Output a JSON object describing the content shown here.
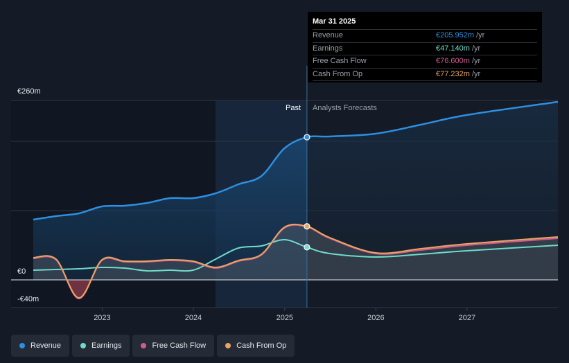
{
  "chart_data": {
    "type": "area",
    "ylim": [
      -40,
      260
    ],
    "y_tick_labels": [
      "€260m",
      "€0",
      "-€40m"
    ],
    "x_tick_labels": [
      "2023",
      "2024",
      "2025",
      "2026",
      "2027"
    ],
    "x_range": [
      "2022-03-31",
      "2027-12-31"
    ],
    "past_label": "Past",
    "forecast_label": "Analysts Forecasts",
    "divider_date": "2025-03-31",
    "series": [
      {
        "name": "Revenue",
        "color": "#2d8fe0",
        "points": [
          [
            "2022-03-31",
            87
          ],
          [
            "2022-06-30",
            92
          ],
          [
            "2022-09-30",
            96
          ],
          [
            "2022-12-31",
            106
          ],
          [
            "2023-03-31",
            107
          ],
          [
            "2023-06-30",
            111
          ],
          [
            "2023-09-30",
            118
          ],
          [
            "2023-12-31",
            118
          ],
          [
            "2024-03-31",
            125
          ],
          [
            "2024-06-30",
            138
          ],
          [
            "2024-09-30",
            150
          ],
          [
            "2024-12-31",
            190
          ],
          [
            "2025-03-31",
            205.952
          ],
          [
            "2025-06-30",
            207
          ],
          [
            "2025-12-31",
            211
          ],
          [
            "2026-06-30",
            224
          ],
          [
            "2026-12-31",
            238
          ],
          [
            "2027-12-31",
            257
          ]
        ]
      },
      {
        "name": "Earnings",
        "color": "#6fdccb",
        "points": [
          [
            "2022-03-31",
            14
          ],
          [
            "2022-06-30",
            15
          ],
          [
            "2022-09-30",
            16
          ],
          [
            "2022-12-31",
            18
          ],
          [
            "2023-03-31",
            17
          ],
          [
            "2023-06-30",
            13
          ],
          [
            "2023-09-30",
            14
          ],
          [
            "2023-12-31",
            14
          ],
          [
            "2024-03-31",
            30
          ],
          [
            "2024-06-30",
            46
          ],
          [
            "2024-09-30",
            49
          ],
          [
            "2024-12-31",
            58
          ],
          [
            "2025-03-31",
            47.14
          ],
          [
            "2025-06-30",
            38
          ],
          [
            "2025-12-31",
            33
          ],
          [
            "2026-06-30",
            37
          ],
          [
            "2026-12-31",
            42
          ],
          [
            "2027-12-31",
            50
          ]
        ]
      },
      {
        "name": "Free Cash Flow",
        "color": "#d05b8e",
        "points": [
          [
            "2022-03-31",
            31
          ],
          [
            "2022-06-30",
            29
          ],
          [
            "2022-09-30",
            -27
          ],
          [
            "2022-12-31",
            28
          ],
          [
            "2023-03-31",
            26
          ],
          [
            "2023-06-30",
            26
          ],
          [
            "2023-09-30",
            28
          ],
          [
            "2023-12-31",
            26
          ],
          [
            "2024-03-31",
            17
          ],
          [
            "2024-06-30",
            27
          ],
          [
            "2024-09-30",
            36
          ],
          [
            "2024-12-31",
            75
          ],
          [
            "2025-03-31",
            76.6
          ],
          [
            "2025-06-30",
            60
          ],
          [
            "2025-12-31",
            38
          ],
          [
            "2026-06-30",
            43
          ],
          [
            "2026-12-31",
            50
          ],
          [
            "2027-12-31",
            60
          ]
        ]
      },
      {
        "name": "Cash From Op",
        "color": "#e9a462",
        "points": [
          [
            "2022-03-31",
            32
          ],
          [
            "2022-06-30",
            30
          ],
          [
            "2022-09-30",
            -26
          ],
          [
            "2022-12-31",
            29
          ],
          [
            "2023-03-31",
            27
          ],
          [
            "2023-06-30",
            27
          ],
          [
            "2023-09-30",
            29
          ],
          [
            "2023-12-31",
            27
          ],
          [
            "2024-03-31",
            18
          ],
          [
            "2024-06-30",
            28
          ],
          [
            "2024-09-30",
            37
          ],
          [
            "2024-12-31",
            76
          ],
          [
            "2025-03-31",
            77.232
          ],
          [
            "2025-06-30",
            61
          ],
          [
            "2025-12-31",
            39
          ],
          [
            "2026-06-30",
            45
          ],
          [
            "2026-12-31",
            52
          ],
          [
            "2027-12-31",
            62
          ]
        ]
      }
    ]
  },
  "tooltip": {
    "date": "Mar 31 2025",
    "rows": [
      {
        "name": "Revenue",
        "value": "€205.952m",
        "unit": "/yr",
        "color": "#2d8fe0"
      },
      {
        "name": "Earnings",
        "value": "€47.140m",
        "unit": "/yr",
        "color": "#6fdccb"
      },
      {
        "name": "Free Cash Flow",
        "value": "€76.600m",
        "unit": "/yr",
        "color": "#d05b8e"
      },
      {
        "name": "Cash From Op",
        "value": "€77.232m",
        "unit": "/yr",
        "color": "#e9a462"
      }
    ]
  },
  "legend": [
    {
      "label": "Revenue",
      "color": "#2d8fe0"
    },
    {
      "label": "Earnings",
      "color": "#6fdccb"
    },
    {
      "label": "Free Cash Flow",
      "color": "#d05b8e"
    },
    {
      "label": "Cash From Op",
      "color": "#e9a462"
    }
  ]
}
